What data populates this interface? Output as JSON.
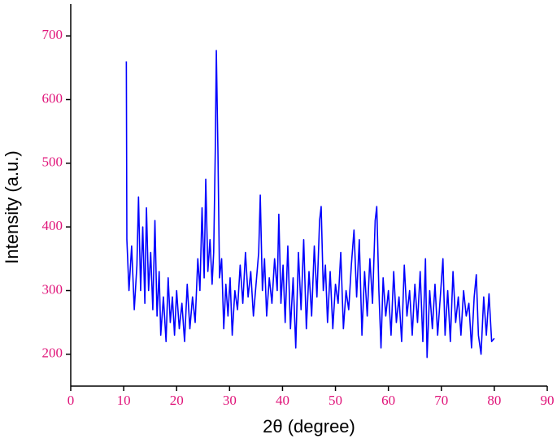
{
  "chart_data": {
    "type": "line",
    "xlabel": "2θ (degree)",
    "ylabel": "Intensity (a.u.)",
    "xlim": [
      0,
      90
    ],
    "xticks": [
      0,
      10,
      20,
      30,
      40,
      50,
      60,
      70,
      80,
      90
    ],
    "ylim": [
      150,
      750
    ],
    "yticks": [
      200,
      300,
      400,
      500,
      600,
      700
    ],
    "series": [
      {
        "color": "#0000ff",
        "x": [
          10.5,
          10.6,
          11,
          11.5,
          12,
          12.5,
          12.8,
          13.2,
          13.6,
          14,
          14.3,
          14.7,
          15.1,
          15.5,
          15.9,
          16.3,
          16.7,
          17,
          17.5,
          18,
          18.4,
          18.8,
          19.2,
          19.6,
          20,
          20.5,
          21,
          21.5,
          22,
          22.5,
          23,
          23.5,
          24,
          24.4,
          24.8,
          25.2,
          25.5,
          25.9,
          26.3,
          26.7,
          27,
          27.3,
          27.5,
          27.8,
          28.1,
          28.5,
          28.9,
          29.3,
          29.7,
          30.1,
          30.5,
          31,
          31.5,
          32,
          32.5,
          33,
          33.5,
          34,
          34.5,
          35,
          35.5,
          35.8,
          36.2,
          36.6,
          37,
          37.5,
          38,
          38.5,
          39,
          39.3,
          39.7,
          40.1,
          40.5,
          41,
          41.5,
          42,
          42.5,
          43,
          43.5,
          44,
          44.5,
          45,
          45.5,
          46,
          46.5,
          47,
          47.3,
          47.7,
          48.1,
          48.5,
          49,
          49.5,
          50,
          50.5,
          51,
          51.5,
          52,
          52.5,
          53,
          53.5,
          54,
          54.5,
          55,
          55.5,
          56,
          56.5,
          57,
          57.5,
          57.8,
          58.2,
          58.6,
          59,
          59.5,
          60,
          60.5,
          61,
          61.5,
          62,
          62.5,
          63,
          63.5,
          64,
          64.5,
          65,
          65.5,
          66,
          66.5,
          67,
          67.3,
          67.8,
          68.3,
          68.8,
          69.3,
          69.8,
          70.3,
          70.7,
          71.2,
          71.7,
          72.2,
          72.7,
          73.2,
          73.7,
          74.2,
          74.7,
          75.2,
          75.7,
          76.2,
          76.6,
          77,
          77.5,
          78,
          78.5,
          79,
          79.5,
          80
        ],
        "values": [
          660,
          380,
          300,
          370,
          270,
          340,
          447,
          300,
          400,
          280,
          430,
          300,
          360,
          270,
          410,
          260,
          330,
          230,
          290,
          220,
          320,
          250,
          290,
          230,
          300,
          240,
          280,
          220,
          310,
          240,
          290,
          250,
          350,
          300,
          430,
          320,
          475,
          330,
          380,
          310,
          360,
          520,
          677,
          520,
          320,
          350,
          240,
          310,
          260,
          320,
          230,
          300,
          270,
          340,
          280,
          360,
          290,
          330,
          260,
          310,
          360,
          450,
          300,
          350,
          260,
          320,
          280,
          350,
          300,
          420,
          280,
          340,
          250,
          370,
          240,
          320,
          210,
          360,
          270,
          380,
          240,
          330,
          260,
          370,
          290,
          410,
          432,
          300,
          340,
          250,
          330,
          240,
          310,
          280,
          360,
          240,
          300,
          270,
          340,
          395,
          290,
          380,
          230,
          330,
          260,
          350,
          280,
          410,
          432,
          300,
          210,
          320,
          260,
          300,
          230,
          330,
          250,
          290,
          220,
          340,
          260,
          300,
          230,
          310,
          250,
          330,
          220,
          350,
          195,
          300,
          240,
          310,
          230,
          290,
          350,
          230,
          300,
          220,
          330,
          250,
          290,
          230,
          300,
          260,
          280,
          210,
          290,
          325,
          230,
          200,
          290,
          230,
          295,
          220,
          225
        ]
      }
    ]
  }
}
